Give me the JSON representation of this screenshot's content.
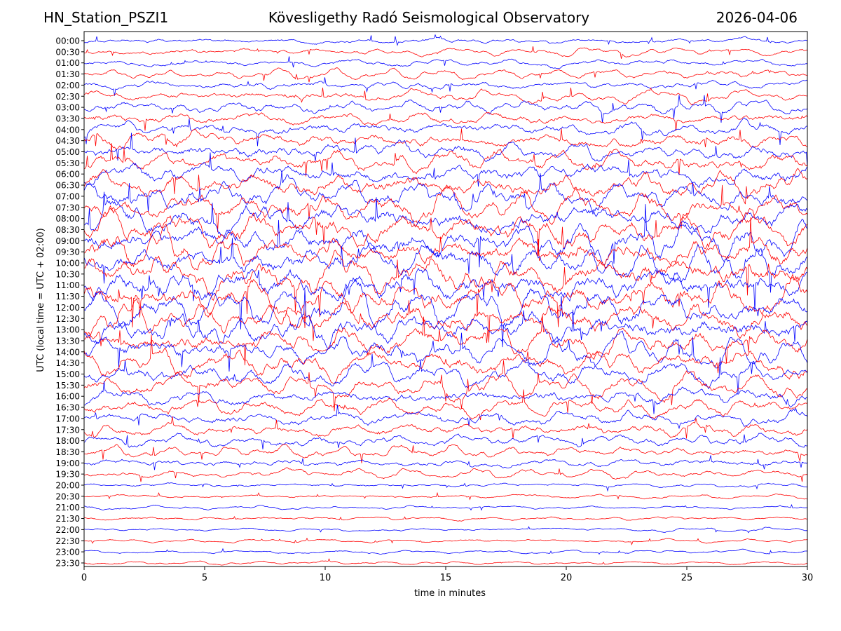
{
  "header": {
    "station": "HN_Station_PSZI1",
    "title": "Kövesligethy Radó Seismological Observatory",
    "date": "2026-04-06"
  },
  "chart_data": {
    "type": "line",
    "title": "Kövesligethy Radó Seismological Observatory",
    "xlabel": "time in minutes",
    "ylabel": "UTC (local time = UTC + 02:00)",
    "xlim": [
      0,
      30
    ],
    "xticks": [
      0,
      5,
      10,
      15,
      20,
      25,
      30
    ],
    "row_labels": [
      "00:00",
      "00:30",
      "01:00",
      "01:30",
      "02:00",
      "02:30",
      "03:00",
      "03:30",
      "04:00",
      "04:30",
      "05:00",
      "05:30",
      "06:00",
      "06:30",
      "07:00",
      "07:30",
      "08:00",
      "08:30",
      "09:00",
      "09:30",
      "10:00",
      "10:30",
      "11:00",
      "11:30",
      "12:00",
      "12:30",
      "13:00",
      "13:30",
      "14:00",
      "14:30",
      "15:00",
      "15:30",
      "16:00",
      "16:30",
      "17:00",
      "17:30",
      "18:00",
      "18:30",
      "19:00",
      "19:30",
      "20:00",
      "20:30",
      "21:00",
      "21:30",
      "22:00",
      "22:30",
      "23:00",
      "23:30"
    ],
    "series_colors": [
      "#0000ff",
      "#ff0000"
    ],
    "grid": false,
    "legend": false
  }
}
